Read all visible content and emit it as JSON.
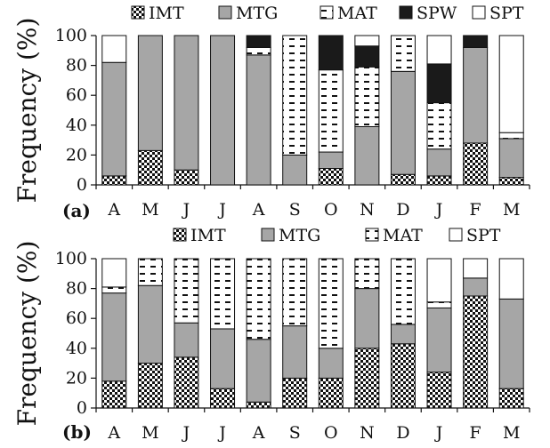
{
  "chart_data": [
    {
      "type": "bar",
      "stacked": true,
      "panel_label": "(a)",
      "ylabel": "Frequency (%)",
      "ylim": [
        0,
        100
      ],
      "yticks": [
        0,
        20,
        40,
        60,
        80,
        100
      ],
      "categories": [
        "A",
        "M",
        "J",
        "J",
        "A",
        "S",
        "O",
        "N",
        "D",
        "J",
        "F",
        "M"
      ],
      "legend": [
        "IMT",
        "MTG",
        "MAT",
        "SPW",
        "SPT"
      ],
      "series": [
        {
          "name": "IMT",
          "values": [
            6,
            23,
            10,
            0,
            0,
            0,
            11,
            0,
            7,
            6,
            28,
            5
          ]
        },
        {
          "name": "MTG",
          "values": [
            76,
            77,
            90,
            100,
            87,
            20,
            11,
            39,
            69,
            18,
            64,
            26
          ]
        },
        {
          "name": "MAT",
          "values": [
            0,
            0,
            0,
            0,
            5,
            80,
            55,
            40,
            24,
            31,
            0,
            4
          ]
        },
        {
          "name": "SPW",
          "values": [
            0,
            0,
            0,
            0,
            8,
            0,
            23,
            14,
            0,
            26,
            8,
            0
          ]
        },
        {
          "name": "SPT",
          "values": [
            18,
            0,
            0,
            0,
            0,
            0,
            0,
            7,
            0,
            19,
            0,
            65
          ]
        }
      ]
    },
    {
      "type": "bar",
      "stacked": true,
      "panel_label": "(b)",
      "ylabel": "Frequency (%)",
      "ylim": [
        0,
        100
      ],
      "yticks": [
        0,
        20,
        40,
        60,
        80,
        100
      ],
      "categories": [
        "A",
        "M",
        "J",
        "J",
        "A",
        "S",
        "O",
        "N",
        "D",
        "J",
        "F",
        "M"
      ],
      "legend": [
        "IMT",
        "MTG",
        "MAT",
        "SPT"
      ],
      "series": [
        {
          "name": "IMT",
          "values": [
            18,
            30,
            34,
            13,
            4,
            20,
            20,
            40,
            43,
            24,
            75,
            13
          ]
        },
        {
          "name": "MTG",
          "values": [
            59,
            52,
            23,
            40,
            42,
            35,
            20,
            40,
            13,
            43,
            12,
            60
          ]
        },
        {
          "name": "MAT",
          "values": [
            4,
            18,
            43,
            47,
            54,
            45,
            60,
            20,
            44,
            4,
            0,
            0
          ]
        },
        {
          "name": "SPT",
          "values": [
            19,
            0,
            0,
            0,
            0,
            0,
            0,
            0,
            0,
            29,
            13,
            27
          ]
        }
      ]
    }
  ],
  "colors": {
    "MTG": "#a6a6a6",
    "SPW": "#1a1a1a",
    "SPT": "#ffffff",
    "IMT": "checkerboard",
    "MAT": "white-with-dashes"
  }
}
